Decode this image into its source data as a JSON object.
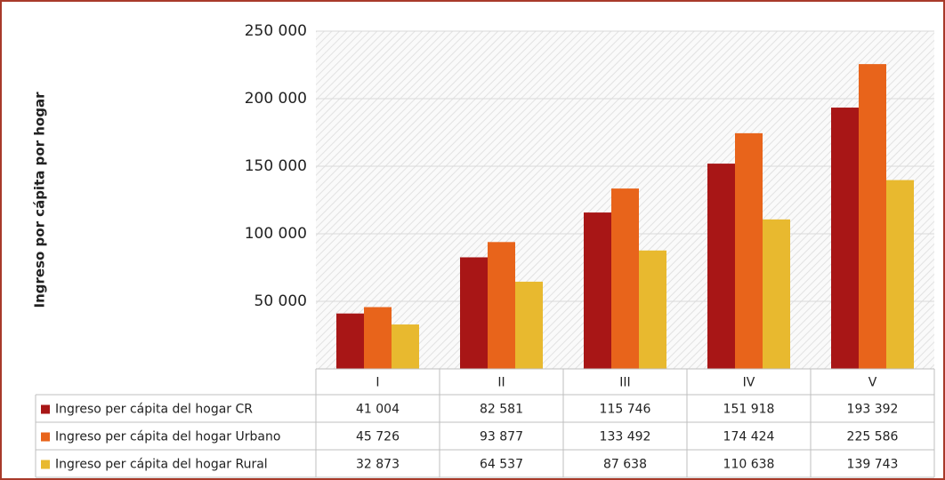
{
  "chart_data": {
    "type": "bar",
    "y_label": "Ingreso por cápita por hogar",
    "categories": [
      "I",
      "II",
      "III",
      "IV",
      "V"
    ],
    "series": [
      {
        "name": "Ingreso per cápita del hogar CR",
        "color": "#a81616",
        "values": [
          41004,
          82581,
          115746,
          151918,
          193392
        ],
        "value_labels": [
          "41 004",
          "82 581",
          "115 746",
          "151 918",
          "193 392"
        ]
      },
      {
        "name": "Ingreso per cápita del hogar Urbano",
        "color": "#e8641b",
        "values": [
          45726,
          93877,
          133492,
          174424,
          225586
        ],
        "value_labels": [
          "45 726",
          "93 877",
          "133 492",
          "174 424",
          "225 586"
        ]
      },
      {
        "name": "Ingreso per cápita del hogar Rural",
        "color": "#e8b92f",
        "values": [
          32873,
          64537,
          87638,
          110638,
          139743
        ],
        "value_labels": [
          "32 873",
          "64 537",
          "87 638",
          "110 638",
          "139 743"
        ]
      }
    ],
    "ylim": [
      0,
      250000
    ],
    "yticks": [
      {
        "value": 50000,
        "label": "50 000"
      },
      {
        "value": 100000,
        "label": "100 000"
      },
      {
        "value": 150000,
        "label": "150 000"
      },
      {
        "value": 200000,
        "label": "200 000"
      },
      {
        "value": 250000,
        "label": "250 000"
      }
    ],
    "grid": true
  }
}
